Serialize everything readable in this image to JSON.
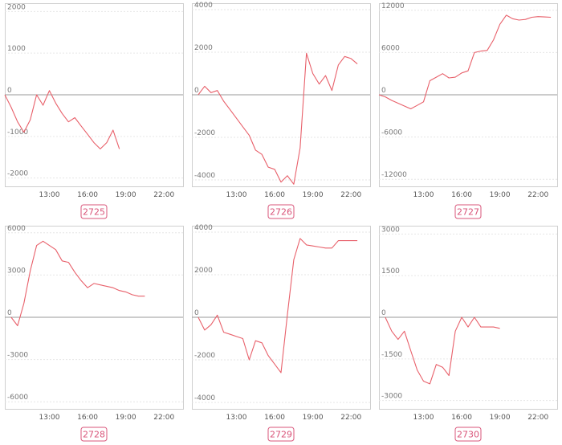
{
  "chart_data": [
    {
      "type": "line",
      "title": "2725",
      "ylim": [
        -2200,
        2200
      ],
      "yticks": [
        2000,
        1000,
        0,
        -1000,
        -2000
      ],
      "xticks": [
        "13:00",
        "16:00",
        "19:00",
        "22:00"
      ],
      "color": "#e8606a",
      "x": [
        "09:30",
        "10:00",
        "10:30",
        "11:00",
        "11:30",
        "12:00",
        "12:30",
        "13:00",
        "13:30",
        "14:00",
        "14:30",
        "15:00",
        "15:30",
        "16:00",
        "16:30",
        "17:00",
        "17:30",
        "18:00",
        "18:30"
      ],
      "values": [
        0,
        -300,
        -650,
        -900,
        -600,
        0,
        -250,
        100,
        -200,
        -450,
        -650,
        -550,
        -750,
        -950,
        -1150,
        -1300,
        -1150,
        -850,
        -1300
      ]
    },
    {
      "type": "line",
      "title": "2726",
      "ylim": [
        -4300,
        4300
      ],
      "yticks": [
        4000,
        2000,
        0,
        -2000,
        -4000
      ],
      "xticks": [
        "13:00",
        "16:00",
        "19:00",
        "22:00"
      ],
      "color": "#e8606a",
      "x": [
        "10:00",
        "10:30",
        "11:00",
        "11:30",
        "12:00",
        "12:30",
        "13:00",
        "13:30",
        "14:00",
        "14:30",
        "15:00",
        "15:30",
        "16:00",
        "16:30",
        "17:00",
        "17:30",
        "18:00",
        "18:30",
        "19:00",
        "19:30",
        "20:00",
        "20:30",
        "21:00",
        "21:30",
        "22:00",
        "22:30"
      ],
      "values": [
        0,
        400,
        100,
        200,
        -300,
        -700,
        -1100,
        -1500,
        -1900,
        -2600,
        -2800,
        -3400,
        -3500,
        -4100,
        -3800,
        -4200,
        -2500,
        1950,
        1000,
        500,
        900,
        200,
        1400,
        1800,
        1700,
        1450
      ]
    },
    {
      "type": "line",
      "title": "2727",
      "ylim": [
        -13000,
        13000
      ],
      "yticks": [
        12000,
        6000,
        0,
        -6000,
        -12000
      ],
      "xticks": [
        "13:00",
        "16:00",
        "19:00",
        "22:00"
      ],
      "color": "#e8606a",
      "x": [
        "09:30",
        "10:00",
        "10:30",
        "11:00",
        "11:30",
        "12:00",
        "12:30",
        "13:00",
        "13:30",
        "14:00",
        "14:30",
        "15:00",
        "15:30",
        "16:00",
        "16:30",
        "17:00",
        "17:30",
        "18:00",
        "18:30",
        "19:00",
        "19:30",
        "20:00",
        "20:30",
        "21:00",
        "21:30",
        "22:00",
        "22:30",
        "23:00"
      ],
      "values": [
        0,
        -300,
        -800,
        -1200,
        -1600,
        -2000,
        -1500,
        -1000,
        2000,
        2500,
        3000,
        2400,
        2500,
        3100,
        3400,
        6000,
        6200,
        6300,
        7800,
        10000,
        11300,
        10800,
        10600,
        10700,
        11000,
        11100,
        11050,
        11000
      ]
    },
    {
      "type": "line",
      "title": "2728",
      "ylim": [
        -6500,
        6500
      ],
      "yticks": [
        6000,
        3000,
        0,
        -3000,
        -6000
      ],
      "xticks": [
        "13:00",
        "16:00",
        "19:00",
        "22:00"
      ],
      "color": "#e8606a",
      "x": [
        "10:00",
        "10:30",
        "11:00",
        "11:30",
        "12:00",
        "12:30",
        "13:00",
        "13:30",
        "14:00",
        "14:30",
        "15:00",
        "15:30",
        "16:00",
        "16:30",
        "17:00",
        "17:30",
        "18:00",
        "18:30",
        "19:00",
        "19:30",
        "20:00",
        "20:30"
      ],
      "values": [
        0,
        -600,
        1000,
        3300,
        5100,
        5400,
        5100,
        4800,
        4000,
        3900,
        3200,
        2600,
        2100,
        2400,
        2300,
        2200,
        2100,
        1900,
        1800,
        1600,
        1500,
        1500
      ]
    },
    {
      "type": "line",
      "title": "2729",
      "ylim": [
        -4300,
        4300
      ],
      "yticks": [
        4000,
        2000,
        0,
        -2000,
        -4000
      ],
      "xticks": [
        "13:00",
        "16:00",
        "19:00",
        "22:00"
      ],
      "color": "#e8606a",
      "x": [
        "10:00",
        "10:30",
        "11:00",
        "11:30",
        "12:00",
        "12:30",
        "13:00",
        "13:30",
        "14:00",
        "14:30",
        "15:00",
        "15:30",
        "16:00",
        "16:30",
        "17:00",
        "17:30",
        "18:00",
        "18:30",
        "19:00",
        "19:30",
        "20:00",
        "20:30",
        "21:00",
        "21:30",
        "22:00",
        "22:30"
      ],
      "values": [
        0,
        -600,
        -350,
        100,
        -700,
        -800,
        -900,
        -1000,
        -2000,
        -1100,
        -1200,
        -1800,
        -2200,
        -2600,
        100,
        2700,
        3700,
        3400,
        3350,
        3300,
        3250,
        3250,
        3600,
        3600,
        3600,
        3600
      ]
    },
    {
      "type": "line",
      "title": "2730",
      "ylim": [
        -3300,
        3300
      ],
      "yticks": [
        3000,
        1500,
        0,
        -1500,
        -3000
      ],
      "xticks": [
        "13:00",
        "16:00",
        "19:00",
        "22:00"
      ],
      "color": "#e8606a",
      "x": [
        "10:00",
        "10:30",
        "11:00",
        "11:30",
        "12:00",
        "12:30",
        "13:00",
        "13:30",
        "14:00",
        "14:30",
        "15:00",
        "15:30",
        "16:00",
        "16:30",
        "17:00",
        "17:30",
        "18:00",
        "18:30",
        "19:00"
      ],
      "values": [
        0,
        -500,
        -800,
        -500,
        -1200,
        -1900,
        -2300,
        -2400,
        -1700,
        -1800,
        -2100,
        -500,
        0,
        -350,
        0,
        -350,
        -350,
        -350,
        -400
      ]
    }
  ]
}
